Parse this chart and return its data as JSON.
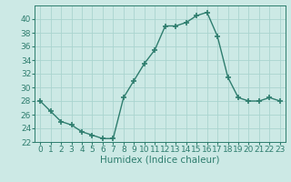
{
  "x": [
    0,
    1,
    2,
    3,
    4,
    5,
    6,
    7,
    8,
    9,
    10,
    11,
    12,
    13,
    14,
    15,
    16,
    17,
    18,
    19,
    20,
    21,
    22,
    23
  ],
  "y": [
    28,
    26.5,
    25,
    24.5,
    23.5,
    23,
    22.5,
    22.5,
    28.5,
    31,
    33.5,
    35.5,
    39,
    39,
    39.5,
    40.5,
    41,
    37.5,
    31.5,
    28.5,
    28,
    28,
    28.5,
    28
  ],
  "line_color": "#2e7d6e",
  "marker": "+",
  "marker_size": 4,
  "bg_color": "#cce9e5",
  "grid_color": "#aad4cf",
  "xlabel": "Humidex (Indice chaleur)",
  "ylim": [
    22,
    42
  ],
  "xlim": [
    -0.5,
    23.5
  ],
  "yticks": [
    22,
    24,
    26,
    28,
    30,
    32,
    34,
    36,
    38,
    40
  ],
  "xticks": [
    0,
    1,
    2,
    3,
    4,
    5,
    6,
    7,
    8,
    9,
    10,
    11,
    12,
    13,
    14,
    15,
    16,
    17,
    18,
    19,
    20,
    21,
    22,
    23
  ],
  "tick_fontsize": 6.5,
  "xlabel_fontsize": 7.5,
  "line_width": 1.0
}
